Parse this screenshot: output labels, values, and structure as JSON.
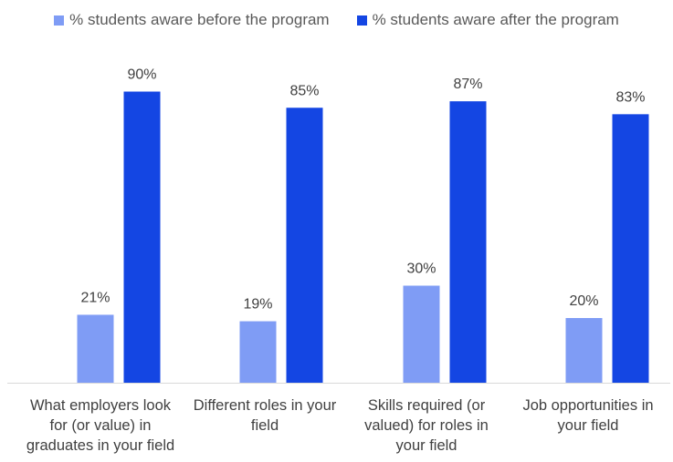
{
  "chart_data": {
    "type": "bar",
    "categories": [
      "What employers look for (or value) in graduates in your field",
      "Different roles in your field",
      "Skills required (or valued) for roles in your field",
      "Job opportunities in your field"
    ],
    "series": [
      {
        "name": "% students aware before the program",
        "values": [
          21,
          19,
          30,
          20
        ],
        "color": "#7f9cf5"
      },
      {
        "name": "% students aware after the program",
        "values": [
          90,
          85,
          87,
          83
        ],
        "color": "#1446e3"
      }
    ],
    "value_labels": {
      "before": [
        "21%",
        "19%",
        "30%",
        "20%"
      ],
      "after": [
        "90%",
        "85%",
        "87%",
        "83%"
      ]
    },
    "ylim": [
      0,
      100
    ],
    "legend_position": "top",
    "grid": false,
    "title": "",
    "xlabel": "",
    "ylabel": ""
  }
}
